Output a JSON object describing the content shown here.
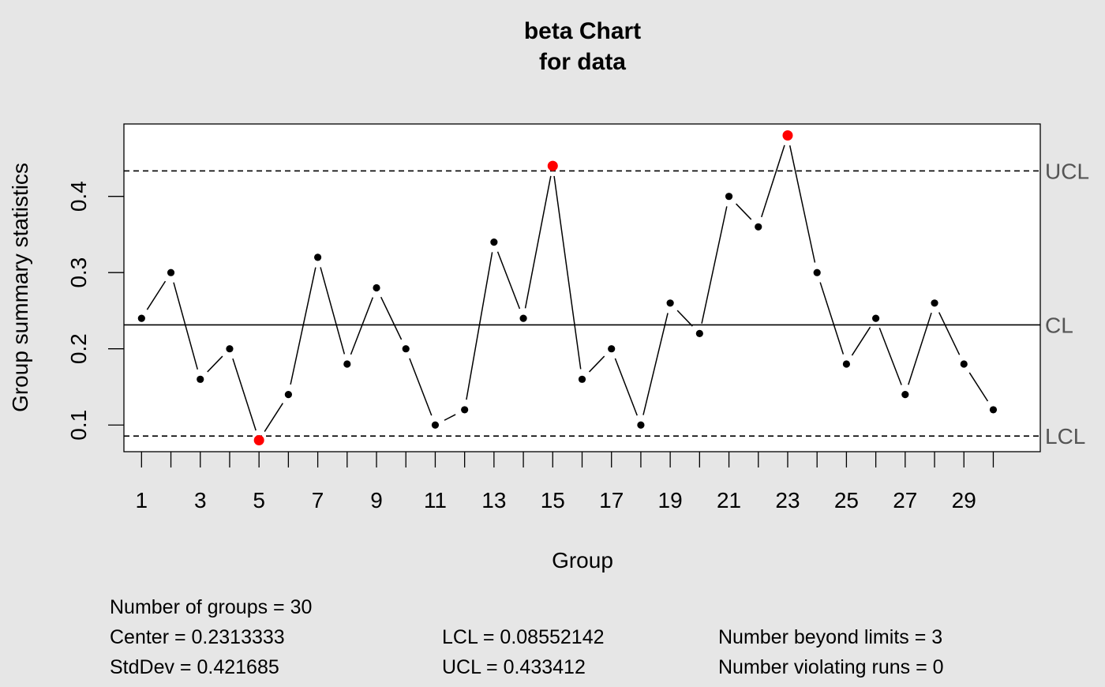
{
  "chart_data": {
    "type": "line",
    "title": "beta Chart",
    "subtitle": "for data",
    "xlabel": "Group",
    "ylabel": "Group summary statistics",
    "x": [
      1,
      2,
      3,
      4,
      5,
      6,
      7,
      8,
      9,
      10,
      11,
      12,
      13,
      14,
      15,
      16,
      17,
      18,
      19,
      20,
      21,
      22,
      23,
      24,
      25,
      26,
      27,
      28,
      29,
      30
    ],
    "values": [
      0.24,
      0.3,
      0.16,
      0.2,
      0.08,
      0.14,
      0.32,
      0.18,
      0.28,
      0.2,
      0.1,
      0.12,
      0.34,
      0.24,
      0.44,
      0.16,
      0.2,
      0.1,
      0.26,
      0.22,
      0.4,
      0.36,
      0.48,
      0.3,
      0.18,
      0.24,
      0.14,
      0.26,
      0.18,
      0.12
    ],
    "xlim": [
      0.4,
      31.6
    ],
    "ylim": [
      0.065,
      0.495
    ],
    "x_tick_labels": [
      "1",
      "3",
      "5",
      "7",
      "9",
      "11",
      "13",
      "15",
      "17",
      "19",
      "21",
      "23",
      "25",
      "27",
      "29"
    ],
    "y_tick_labels": [
      "0.1",
      "0.2",
      "0.3",
      "0.4"
    ],
    "limits": [
      {
        "label": "UCL",
        "value": 0.433412,
        "style": "dashed"
      },
      {
        "label": "CL",
        "value": 0.2313333,
        "style": "solid"
      },
      {
        "label": "LCL",
        "value": 0.08552142,
        "style": "dashed"
      }
    ],
    "point_color": "#000000",
    "violation_color": "#ff0000",
    "grid": false
  },
  "stats": {
    "groups": "Number of groups = 30",
    "center": "Center = 0.2313333",
    "stddev": "StdDev = 0.421685",
    "lcl": "LCL = 0.08552142",
    "ucl": "UCL = 0.433412",
    "beyond": "Number beyond limits = 3",
    "runs": "Number violating runs = 0"
  }
}
